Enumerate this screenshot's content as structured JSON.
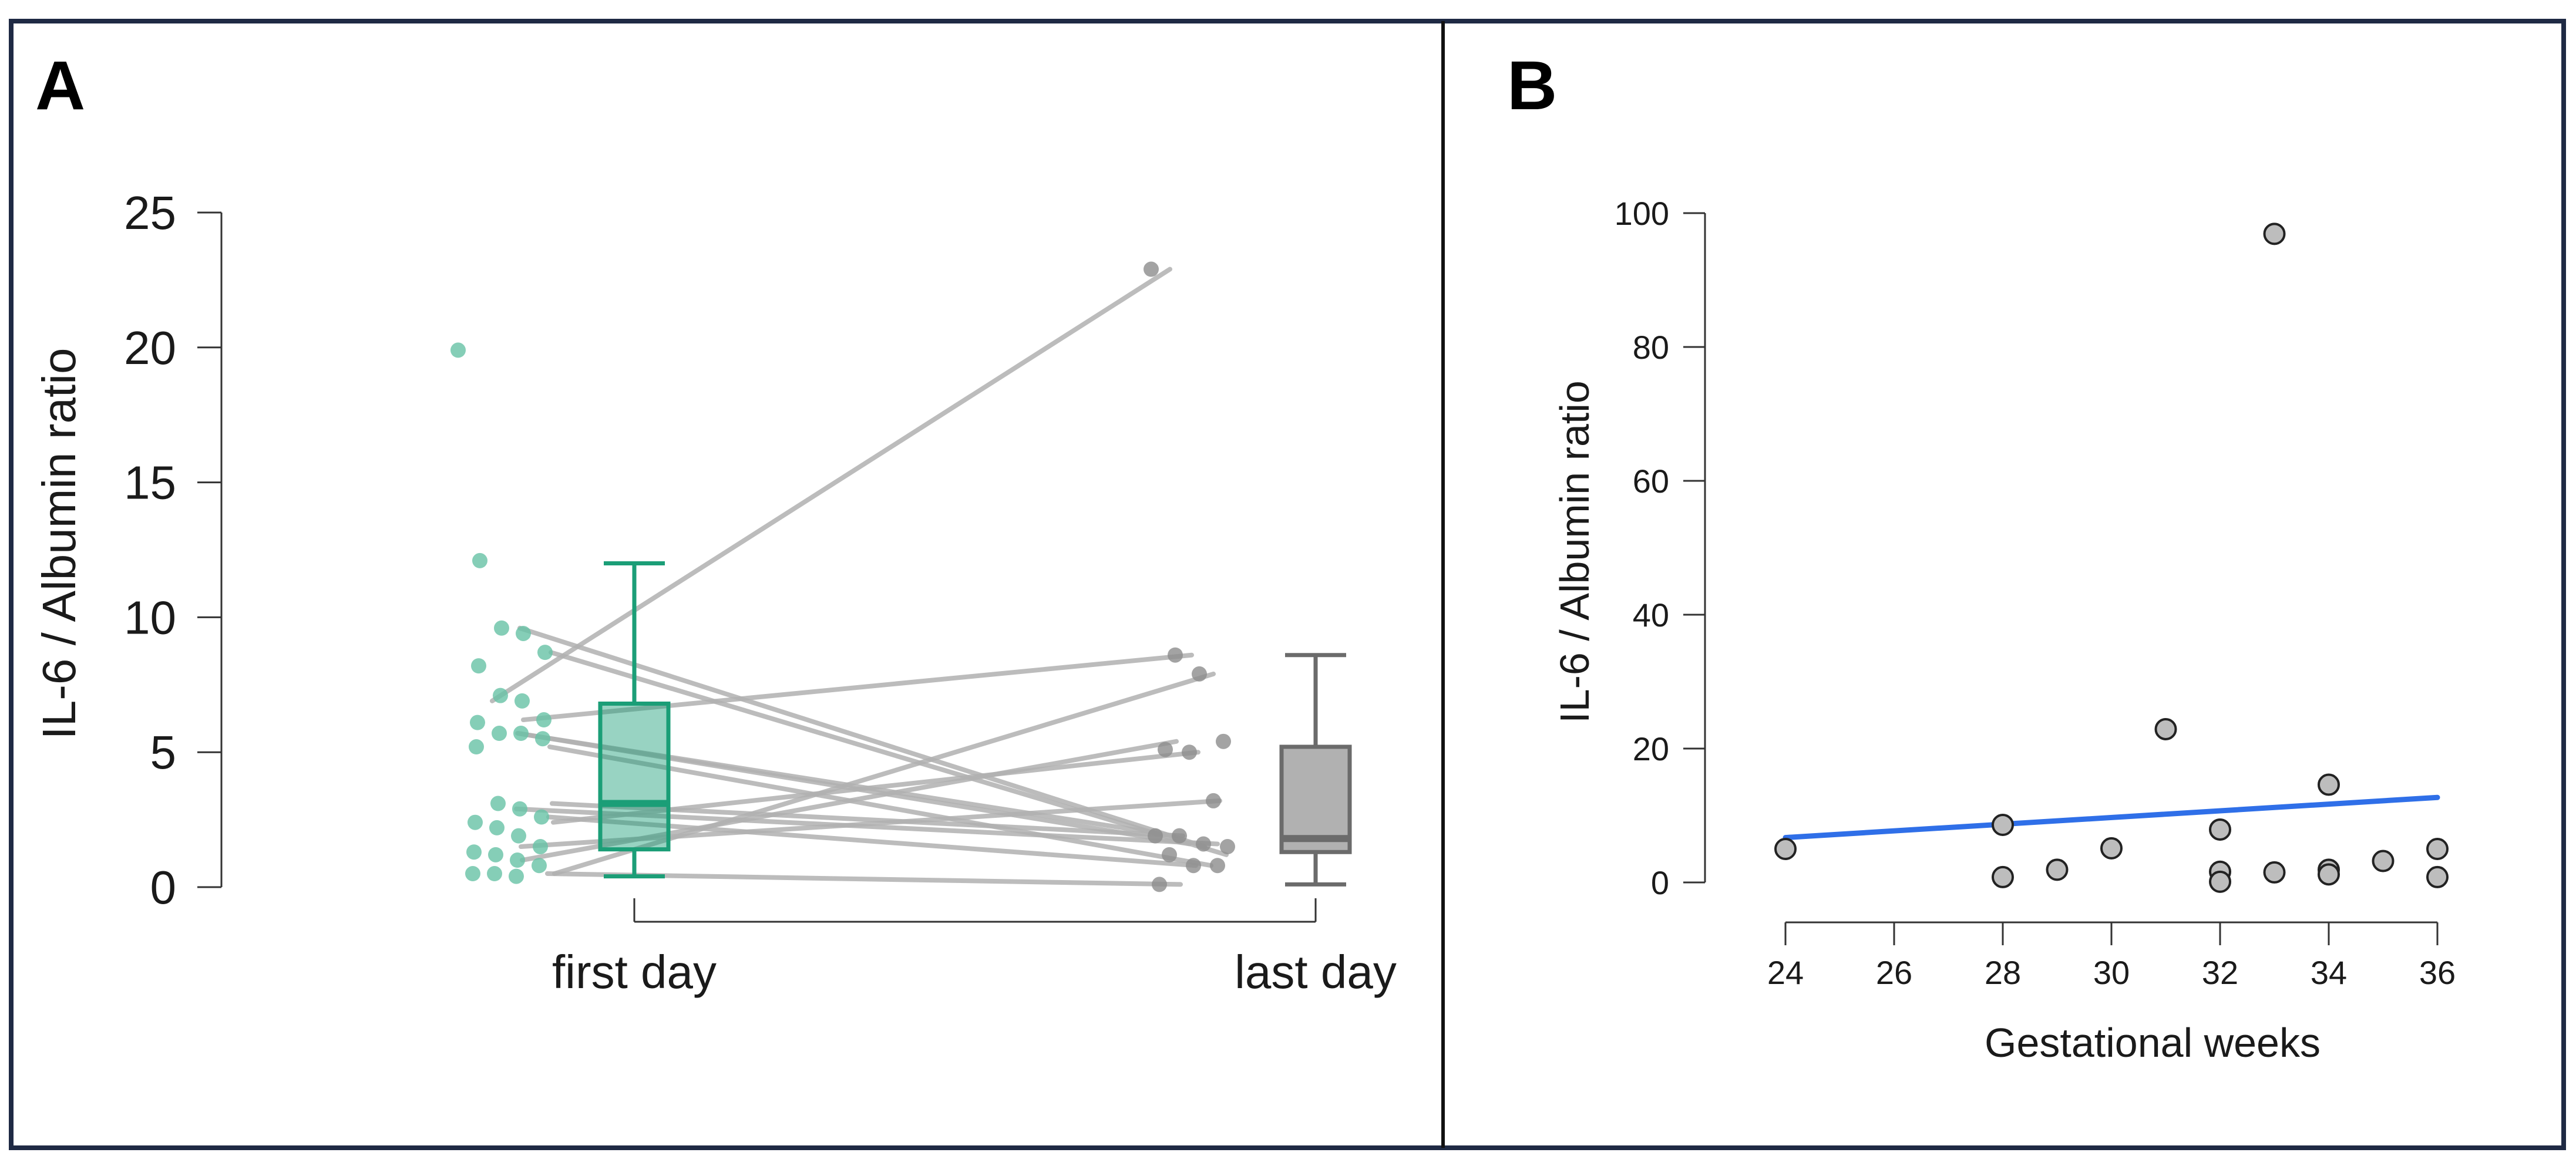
{
  "colors": {
    "frame": "#1f2a44",
    "green": "#1b9e77",
    "green_point": "#66c2a5",
    "grey_box": "#9e9e9e",
    "grey_point": "#8c8c8c",
    "pair_line": "#b0b0b0",
    "fit_line": "#2f6fe8",
    "scatter_fill": "#bdbdbd"
  },
  "chart_data": [
    {
      "panel": "A",
      "type": "box",
      "title": "",
      "ylabel": "IL-6 / Albumin ratio",
      "xlabel": "",
      "ylim": [
        0,
        25
      ],
      "yticks": [
        "0",
        "5",
        "10",
        "15",
        "20",
        "25"
      ],
      "categories": [
        "first day",
        "last day"
      ],
      "series": [
        {
          "group": "first day",
          "box": {
            "whisker_low": 0.4,
            "q1": 1.4,
            "median": 3.1,
            "q3": 6.8,
            "whisker_high": 12.0
          },
          "points": [
            19.9,
            12.1,
            9.6,
            9.4,
            8.7,
            8.2,
            7.1,
            6.9,
            6.2,
            6.1,
            5.7,
            5.7,
            5.5,
            5.2,
            3.1,
            2.9,
            2.6,
            2.4,
            2.2,
            1.9,
            1.5,
            1.3,
            1.2,
            1.0,
            0.8,
            0.5,
            0.5,
            0.4
          ]
        },
        {
          "group": "last day",
          "box": {
            "whisker_low": 0.1,
            "q1": 1.3,
            "median": 1.8,
            "q3": 5.2,
            "whisker_high": 8.6
          },
          "points": [
            22.9,
            8.6,
            7.9,
            5.4,
            5.1,
            5.0,
            3.2,
            1.9,
            1.9,
            1.6,
            1.5,
            1.2,
            0.8,
            0.8,
            0.1
          ]
        }
      ],
      "pairs": [
        [
          6.9,
          22.9
        ],
        [
          6.2,
          8.6
        ],
        [
          0.5,
          7.9
        ],
        [
          1.0,
          5.4
        ],
        [
          2.4,
          5.0
        ],
        [
          1.5,
          3.2
        ],
        [
          3.1,
          1.9
        ],
        [
          9.6,
          1.5
        ],
        [
          8.7,
          1.2
        ],
        [
          5.7,
          1.6
        ],
        [
          5.2,
          0.8
        ],
        [
          5.7,
          1.9
        ],
        [
          2.6,
          0.8
        ],
        [
          2.9,
          1.6
        ],
        [
          0.5,
          0.1
        ]
      ]
    },
    {
      "panel": "B",
      "type": "scatter",
      "title": "",
      "xlabel": "Gestational weeks",
      "ylabel": "IL-6 / Albumin ratio",
      "xlim": [
        24,
        36
      ],
      "ylim": [
        0,
        100
      ],
      "xticks": [
        "24",
        "26",
        "28",
        "30",
        "32",
        "34",
        "36"
      ],
      "yticks": [
        "0",
        "20",
        "40",
        "60",
        "80",
        "100"
      ],
      "points": [
        {
          "x": 24,
          "y": 5.0
        },
        {
          "x": 28,
          "y": 8.6
        },
        {
          "x": 28,
          "y": 0.8
        },
        {
          "x": 29,
          "y": 1.9
        },
        {
          "x": 30,
          "y": 5.1
        },
        {
          "x": 31,
          "y": 22.9
        },
        {
          "x": 32,
          "y": 7.9
        },
        {
          "x": 32,
          "y": 1.6
        },
        {
          "x": 32,
          "y": 0.1
        },
        {
          "x": 33,
          "y": 96.9
        },
        {
          "x": 33,
          "y": 1.5
        },
        {
          "x": 34,
          "y": 14.6
        },
        {
          "x": 34,
          "y": 1.9
        },
        {
          "x": 34,
          "y": 1.2
        },
        {
          "x": 35,
          "y": 3.2
        },
        {
          "x": 36,
          "y": 5.0
        },
        {
          "x": 36,
          "y": 0.8
        }
      ],
      "fit_line": {
        "x": [
          24,
          36
        ],
        "y": [
          6.7,
          12.7
        ]
      }
    }
  ]
}
